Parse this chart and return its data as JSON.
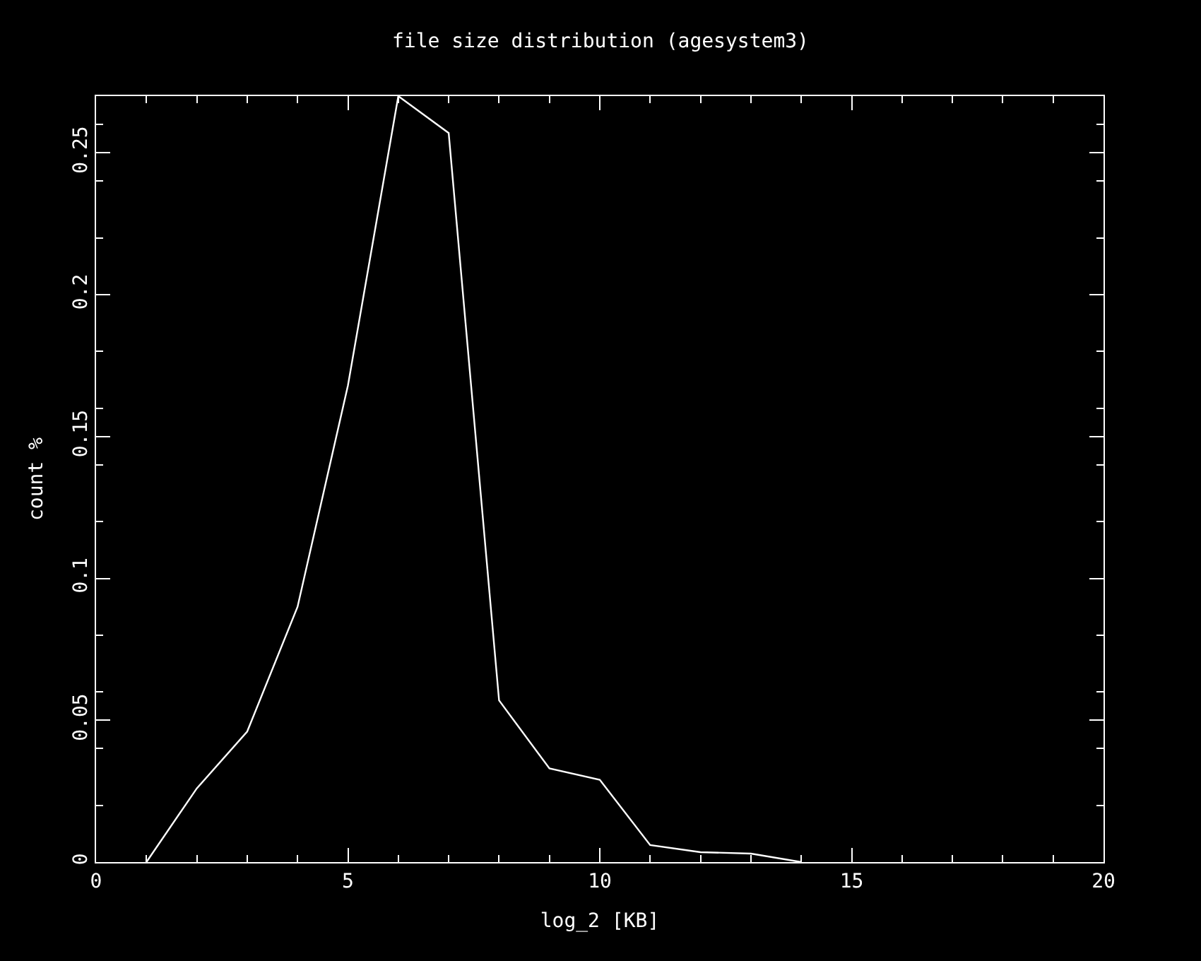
{
  "chart_data": {
    "type": "line",
    "title": "file size distribution (agesystem3)",
    "xlabel": "log_2 [KB]",
    "ylabel": "count %",
    "x": [
      1,
      2,
      3,
      4,
      5,
      6,
      7,
      8,
      9,
      10,
      11,
      12,
      13,
      14
    ],
    "series": [
      {
        "color": "#ffffff",
        "values": [
          0,
          0.026,
          0.046,
          0.09,
          0.168,
          0.27,
          0.257,
          0.057,
          0.033,
          0.029,
          0.006,
          0.0035,
          0.003,
          0
        ]
      }
    ],
    "xlim": [
      0,
      20
    ],
    "xticks": [
      0,
      5,
      10,
      15,
      20
    ],
    "ylim": [
      0,
      0.27
    ],
    "yticks": [
      0,
      0.05,
      0.1,
      0.15,
      0.2,
      0.25
    ],
    "grid": false,
    "marker": "none",
    "line_style": "solid"
  }
}
